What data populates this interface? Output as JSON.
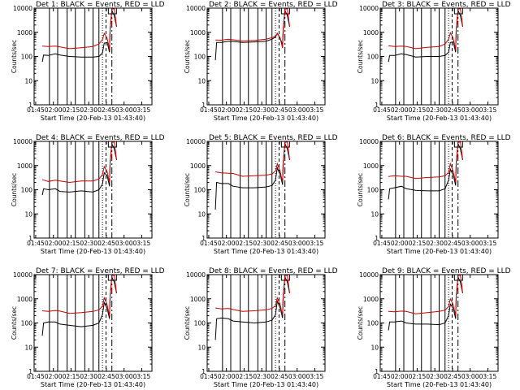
{
  "figure": {
    "background": "#ffffff"
  },
  "chart_data": [
    {
      "type": "line",
      "title": "Det 1: BLACK = Events, RED = LLD",
      "xlabel": "Start Time (20-Feb-13 01:43:40)",
      "ylabel": "Counts/sec",
      "xticks": [
        "01:45",
        "02:00",
        "02:15",
        "02:30",
        "02:45",
        "03:00",
        "03:15"
      ],
      "yscale": "log",
      "ylim": [
        1,
        10000
      ],
      "yticks": [
        "1",
        "10",
        "100",
        "1000",
        "10000"
      ],
      "x_minutes_since_0143": {
        "min": 0,
        "max": 100
      },
      "series": [
        {
          "name": "Events",
          "color": "#000000",
          "x": [
            7,
            8,
            12,
            18,
            22,
            30,
            40,
            50,
            55,
            58,
            59.5,
            62,
            64,
            64.5,
            66,
            68,
            70
          ],
          "y": [
            60,
            115,
            110,
            130,
            115,
            100,
            95,
            95,
            100,
            140,
            360,
            380,
            150,
            1300,
            8000,
            5000,
            1700
          ]
        },
        {
          "name": "LLD",
          "color": "#cc0000",
          "x": [
            7,
            12,
            18,
            22,
            30,
            40,
            50,
            55,
            58,
            59.5,
            62,
            64,
            64.5,
            66,
            68,
            70
          ],
          "y": [
            270,
            260,
            270,
            250,
            210,
            230,
            260,
            330,
            500,
            900,
            560,
            200,
            1300,
            9000,
            9500,
            1700
          ]
        }
      ],
      "vlines_solid": [
        13,
        20,
        28,
        35,
        43,
        50,
        55
      ],
      "vlines_dotted": [
        58
      ],
      "vlines_dashed": [
        61,
        66
      ]
    },
    {
      "type": "line",
      "title": "Det 2: BLACK = Events, RED = LLD",
      "xlabel": "Start Time (20-Feb-13 01:43:40)",
      "ylabel": "Counts/sec",
      "xticks": [
        "01:45",
        "02:00",
        "02:15",
        "02:30",
        "02:45",
        "03:00",
        "03:15"
      ],
      "yscale": "log",
      "ylim": [
        1,
        10000
      ],
      "yticks": [
        "1",
        "10",
        "100",
        "1000",
        "10000"
      ],
      "x_minutes_since_0143": {
        "min": 0,
        "max": 100
      },
      "series": [
        {
          "name": "Events",
          "color": "#000000",
          "x": [
            7,
            8,
            12,
            18,
            22,
            30,
            40,
            50,
            55,
            58,
            59.5,
            62,
            64,
            64.5,
            66,
            68,
            70
          ],
          "y": [
            70,
            380,
            380,
            430,
            420,
            380,
            400,
            430,
            520,
            640,
            900,
            560,
            300,
            1300,
            8000,
            5000,
            1700
          ]
        },
        {
          "name": "LLD",
          "color": "#cc0000",
          "x": [
            7,
            12,
            18,
            22,
            30,
            40,
            50,
            55,
            58,
            59.5,
            62,
            64,
            64.5,
            66,
            68,
            70
          ],
          "y": [
            480,
            470,
            520,
            490,
            440,
            460,
            520,
            600,
            700,
            900,
            560,
            220,
            1300,
            9000,
            9500,
            1700
          ]
        }
      ],
      "vlines_solid": [
        13,
        20,
        28,
        35,
        43,
        50,
        55
      ],
      "vlines_dotted": [
        58
      ],
      "vlines_dashed": [
        61,
        66
      ]
    },
    {
      "type": "line",
      "title": "Det 3: BLACK = Events, RED = LLD",
      "xlabel": "Start Time (20-Feb-13 01:43:40)",
      "ylabel": "Counts/sec",
      "xticks": [
        "01:45",
        "02:00",
        "02:15",
        "02:30",
        "02:45",
        "03:00",
        "03:15"
      ],
      "yscale": "log",
      "ylim": [
        1,
        10000
      ],
      "yticks": [
        "1",
        "10",
        "100",
        "1000",
        "10000"
      ],
      "x_minutes_since_0143": {
        "min": 0,
        "max": 100
      },
      "series": [
        {
          "name": "Events",
          "color": "#000000",
          "x": [
            7,
            8,
            12,
            18,
            22,
            30,
            40,
            50,
            55,
            58,
            59.5,
            62,
            64,
            64.5,
            66,
            68,
            70
          ],
          "y": [
            60,
            110,
            110,
            130,
            120,
            95,
            100,
            100,
            110,
            150,
            380,
            400,
            150,
            1300,
            8000,
            5000,
            1700
          ]
        },
        {
          "name": "LLD",
          "color": "#cc0000",
          "x": [
            7,
            12,
            18,
            22,
            30,
            40,
            50,
            55,
            58,
            59.5,
            62,
            64,
            64.5,
            66,
            68,
            70
          ],
          "y": [
            280,
            260,
            270,
            260,
            210,
            240,
            260,
            330,
            520,
            950,
            560,
            190,
            1300,
            9000,
            9500,
            1700
          ]
        }
      ],
      "vlines_solid": [
        13,
        20,
        28,
        35,
        43,
        50,
        55
      ],
      "vlines_dotted": [
        58
      ],
      "vlines_dashed": [
        61,
        66
      ]
    },
    {
      "type": "line",
      "title": "Det 4: BLACK = Events, RED = LLD",
      "xlabel": "Start Time (20-Feb-13 01:43:40)",
      "ylabel": "Counts/sec",
      "xticks": [
        "01:45",
        "02:00",
        "02:15",
        "02:30",
        "02:45",
        "03:00",
        "03:15"
      ],
      "yscale": "log",
      "ylim": [
        1,
        10000
      ],
      "yticks": [
        "1",
        "10",
        "100",
        "1000",
        "10000"
      ],
      "x_minutes_since_0143": {
        "min": 0,
        "max": 100
      },
      "series": [
        {
          "name": "Events",
          "color": "#000000",
          "x": [
            7,
            8,
            12,
            18,
            22,
            30,
            40,
            50,
            55,
            58,
            59.5,
            62,
            64,
            64.5,
            66,
            68,
            70
          ],
          "y": [
            60,
            110,
            100,
            110,
            85,
            80,
            90,
            80,
            100,
            170,
            500,
            380,
            140,
            1300,
            8000,
            5000,
            1700
          ]
        },
        {
          "name": "LLD",
          "color": "#cc0000",
          "x": [
            7,
            12,
            18,
            22,
            30,
            40,
            50,
            55,
            58,
            59.5,
            62,
            64,
            64.5,
            66,
            68,
            70
          ],
          "y": [
            260,
            220,
            250,
            230,
            200,
            230,
            230,
            280,
            420,
            900,
            560,
            200,
            1300,
            9000,
            9500,
            1700
          ]
        }
      ],
      "vlines_solid": [
        13,
        20,
        28,
        35,
        43,
        50,
        55
      ],
      "vlines_dotted": [
        58
      ],
      "vlines_dashed": [
        61,
        66
      ]
    },
    {
      "type": "line",
      "title": "Det 5: BLACK = Events, RED = LLD",
      "xlabel": "Start Time (20-Feb-13 01:43:40)",
      "ylabel": "Counts/sec",
      "xticks": [
        "01:45",
        "02:00",
        "02:15",
        "02:30",
        "02:45",
        "03:00",
        "03:15"
      ],
      "yscale": "log",
      "ylim": [
        1,
        10000
      ],
      "yticks": [
        "1",
        "10",
        "100",
        "1000",
        "10000"
      ],
      "x_minutes_since_0143": {
        "min": 0,
        "max": 100
      },
      "series": [
        {
          "name": "Events",
          "color": "#000000",
          "x": [
            7,
            8,
            12,
            18,
            22,
            30,
            40,
            50,
            55,
            58,
            59.5,
            62,
            64,
            64.5,
            66,
            68,
            70
          ],
          "y": [
            15,
            200,
            180,
            180,
            140,
            120,
            120,
            130,
            150,
            250,
            800,
            420,
            160,
            1300,
            8000,
            5000,
            1700
          ]
        },
        {
          "name": "LLD",
          "color": "#cc0000",
          "x": [
            7,
            12,
            18,
            22,
            30,
            40,
            50,
            55,
            58,
            59.5,
            62,
            64,
            64.5,
            66,
            68,
            70
          ],
          "y": [
            550,
            500,
            480,
            470,
            360,
            380,
            400,
            450,
            600,
            1200,
            560,
            200,
            1300,
            9000,
            9500,
            1700
          ]
        }
      ],
      "vlines_solid": [
        13,
        20,
        28,
        35,
        43,
        50,
        55
      ],
      "vlines_dotted": [
        58
      ],
      "vlines_dashed": [
        61,
        66
      ]
    },
    {
      "type": "line",
      "title": "Det 6: BLACK = Events, RED = LLD",
      "xlabel": "Start Time (20-Feb-13 01:43:40)",
      "ylabel": "Counts/sec",
      "xticks": [
        "01:45",
        "02:00",
        "02:15",
        "02:30",
        "02:45",
        "03:00",
        "03:15"
      ],
      "yscale": "log",
      "ylim": [
        1,
        10000
      ],
      "yticks": [
        "1",
        "10",
        "100",
        "1000",
        "10000"
      ],
      "x_minutes_since_0143": {
        "min": 0,
        "max": 100
      },
      "series": [
        {
          "name": "Events",
          "color": "#000000",
          "x": [
            7,
            8,
            12,
            18,
            22,
            30,
            40,
            50,
            55,
            58,
            59.5,
            62,
            64,
            64.5,
            66,
            68,
            70
          ],
          "y": [
            40,
            110,
            120,
            140,
            110,
            95,
            90,
            90,
            110,
            250,
            700,
            400,
            150,
            1300,
            8000,
            5000,
            1700
          ]
        },
        {
          "name": "LLD",
          "color": "#cc0000",
          "x": [
            7,
            12,
            18,
            22,
            30,
            40,
            50,
            55,
            58,
            59.5,
            62,
            64,
            64.5,
            66,
            68,
            70
          ],
          "y": [
            350,
            380,
            360,
            360,
            290,
            320,
            340,
            380,
            520,
            1200,
            560,
            200,
            1300,
            9000,
            9500,
            1700
          ]
        }
      ],
      "vlines_solid": [
        13,
        20,
        28,
        35,
        43,
        50,
        55
      ],
      "vlines_dotted": [
        58
      ],
      "vlines_dashed": [
        61,
        66
      ]
    },
    {
      "type": "line",
      "title": "Det 7: BLACK = Events, RED = LLD",
      "xlabel": "Start Time (20-Feb-13 01:43:40)",
      "ylabel": "Counts/sec",
      "xticks": [
        "01:45",
        "02:00",
        "02:15",
        "02:30",
        "02:45",
        "03:00",
        "03:15"
      ],
      "yscale": "log",
      "ylim": [
        1,
        10000
      ],
      "yticks": [
        "1",
        "10",
        "100",
        "1000",
        "10000"
      ],
      "x_minutes_since_0143": {
        "min": 0,
        "max": 100
      },
      "series": [
        {
          "name": "Events",
          "color": "#000000",
          "x": [
            7,
            8,
            12,
            18,
            22,
            30,
            40,
            50,
            55,
            58,
            59.5,
            62,
            64,
            64.5,
            66,
            68,
            70
          ],
          "y": [
            30,
            100,
            110,
            110,
            90,
            80,
            70,
            80,
            100,
            220,
            700,
            400,
            150,
            1300,
            8000,
            5000,
            1700
          ]
        },
        {
          "name": "LLD",
          "color": "#cc0000",
          "x": [
            7,
            12,
            18,
            22,
            30,
            40,
            50,
            55,
            58,
            59.5,
            62,
            64,
            64.5,
            66,
            68,
            70
          ],
          "y": [
            320,
            300,
            330,
            310,
            250,
            270,
            300,
            350,
            500,
            1100,
            560,
            200,
            1300,
            9000,
            9500,
            1700
          ]
        }
      ],
      "vlines_solid": [
        13,
        20,
        28,
        35,
        43,
        50,
        55
      ],
      "vlines_dotted": [
        58
      ],
      "vlines_dashed": [
        61,
        66
      ]
    },
    {
      "type": "line",
      "title": "Det 8: BLACK = Events, RED = LLD",
      "xlabel": "Start Time (20-Feb-13 01:43:40)",
      "ylabel": "Counts/sec",
      "xticks": [
        "01:45",
        "02:00",
        "02:15",
        "02:30",
        "02:45",
        "03:00",
        "03:15"
      ],
      "yscale": "log",
      "ylim": [
        1,
        10000
      ],
      "yticks": [
        "1",
        "10",
        "100",
        "1000",
        "10000"
      ],
      "x_minutes_since_0143": {
        "min": 0,
        "max": 100
      },
      "series": [
        {
          "name": "Events",
          "color": "#000000",
          "x": [
            7,
            8,
            12,
            18,
            22,
            30,
            40,
            50,
            55,
            58,
            59.5,
            62,
            64,
            64.5,
            66,
            68,
            70
          ],
          "y": [
            20,
            150,
            160,
            150,
            120,
            110,
            100,
            110,
            130,
            220,
            800,
            420,
            160,
            1300,
            8000,
            5000,
            1700
          ]
        },
        {
          "name": "LLD",
          "color": "#cc0000",
          "x": [
            7,
            12,
            18,
            22,
            30,
            40,
            50,
            55,
            58,
            59.5,
            62,
            64,
            64.5,
            66,
            68,
            70
          ],
          "y": [
            420,
            380,
            400,
            360,
            300,
            320,
            350,
            400,
            520,
            1100,
            560,
            200,
            1300,
            9000,
            9500,
            1700
          ]
        }
      ],
      "vlines_solid": [
        13,
        20,
        28,
        35,
        43,
        50,
        55
      ],
      "vlines_dotted": [
        58
      ],
      "vlines_dashed": [
        61,
        66
      ]
    },
    {
      "type": "line",
      "title": "Det 9: BLACK = Events, RED = LLD",
      "xlabel": "Start Time (20-Feb-13 01:43:40)",
      "ylabel": "Counts/sec",
      "xticks": [
        "01:45",
        "02:00",
        "02:15",
        "02:30",
        "02:45",
        "03:00",
        "03:15"
      ],
      "yscale": "log",
      "ylim": [
        1,
        10000
      ],
      "yticks": [
        "1",
        "10",
        "100",
        "1000",
        "10000"
      ],
      "x_minutes_since_0143": {
        "min": 0,
        "max": 100
      },
      "series": [
        {
          "name": "Events",
          "color": "#000000",
          "x": [
            7,
            8,
            12,
            18,
            22,
            30,
            40,
            50,
            55,
            58,
            59.5,
            62,
            64,
            64.5,
            66,
            68,
            70
          ],
          "y": [
            50,
            110,
            110,
            120,
            100,
            90,
            90,
            85,
            100,
            200,
            600,
            400,
            150,
            1300,
            8000,
            5000,
            1700
          ]
        },
        {
          "name": "LLD",
          "color": "#cc0000",
          "x": [
            7,
            12,
            18,
            22,
            30,
            40,
            50,
            55,
            58,
            59.5,
            62,
            64,
            64.5,
            66,
            68,
            70
          ],
          "y": [
            300,
            290,
            310,
            300,
            240,
            270,
            300,
            340,
            480,
            1000,
            560,
            200,
            1300,
            9000,
            9500,
            1700
          ]
        }
      ],
      "vlines_solid": [
        13,
        20,
        28,
        35,
        43,
        50,
        55
      ],
      "vlines_dotted": [
        58
      ],
      "vlines_dashed": [
        61,
        66
      ]
    }
  ]
}
